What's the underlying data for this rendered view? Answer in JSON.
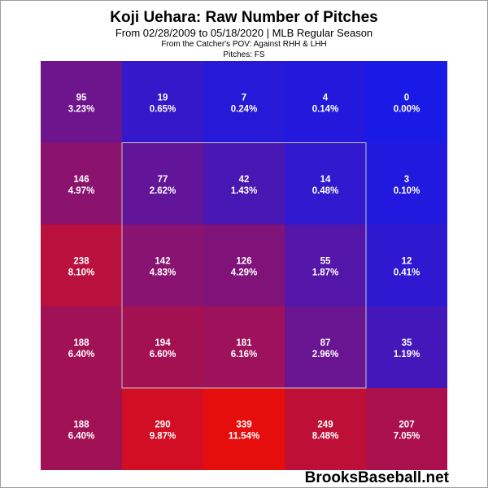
{
  "header": {
    "title": "Koji Uehara: Raw Number of Pitches",
    "subtitle": "From 02/28/2009 to 05/18/2020 | MLB Regular Season",
    "pov": "From the Catcher's POV:  Against RHH & LHH",
    "pitches": "Pitches:  FS"
  },
  "watermark": "BrooksBaseball.net",
  "chart_data": {
    "type": "heatmap",
    "title": "Koji Uehara: Raw Number of Pitches",
    "rows": 5,
    "cols": 5,
    "counts": [
      [
        95,
        19,
        7,
        4,
        0
      ],
      [
        146,
        77,
        42,
        14,
        3
      ],
      [
        238,
        142,
        126,
        55,
        12
      ],
      [
        188,
        194,
        181,
        87,
        35
      ],
      [
        188,
        290,
        339,
        249,
        207
      ]
    ],
    "percents": [
      [
        "3.23%",
        "0.65%",
        "0.24%",
        "0.14%",
        "0.00%"
      ],
      [
        "4.97%",
        "2.62%",
        "1.43%",
        "0.48%",
        "0.10%"
      ],
      [
        "8.10%",
        "4.83%",
        "4.29%",
        "1.87%",
        "0.41%"
      ],
      [
        "6.40%",
        "6.60%",
        "6.16%",
        "2.96%",
        "1.19%"
      ],
      [
        "6.40%",
        "9.87%",
        "11.54%",
        "8.48%",
        "7.05%"
      ]
    ],
    "strike_zone": "inner 3x3 cells",
    "color_low": "#1a1ae6",
    "color_high": "#e60d0d"
  }
}
